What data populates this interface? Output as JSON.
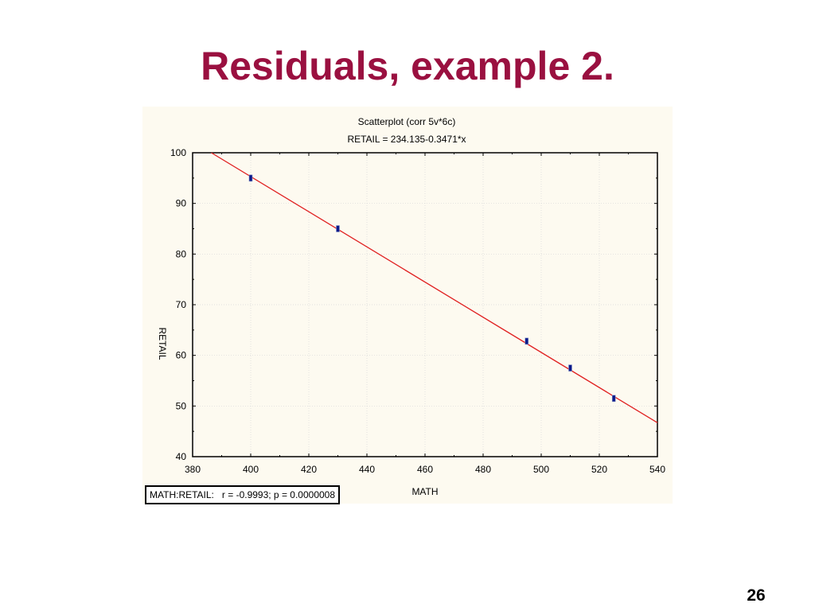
{
  "slide": {
    "title": "Residuals, example 2.",
    "page_number": "26"
  },
  "chart_data": {
    "type": "scatter",
    "title": "Scatterplot (corr 5v*6c)",
    "subtitle": "RETAIL = 234.135-0.3471*x",
    "xlabel": "MATH",
    "ylabel": "RETAIL",
    "xlim": [
      380,
      540
    ],
    "ylim": [
      40,
      100
    ],
    "x_ticks": [
      380,
      400,
      420,
      440,
      460,
      480,
      500,
      520,
      540
    ],
    "y_ticks": [
      40,
      50,
      60,
      70,
      80,
      90,
      100
    ],
    "grid": true,
    "points": [
      {
        "x": 400,
        "y": 95
      },
      {
        "x": 430,
        "y": 85
      },
      {
        "x": 495,
        "y": 62.8
      },
      {
        "x": 510,
        "y": 57.5
      },
      {
        "x": 525,
        "y": 51.5
      }
    ],
    "regression": {
      "intercept": 234.135,
      "slope": -0.3471
    },
    "stats_text": "MATH:RETAIL:   r = -0.9993; p = 0.0000008",
    "colors": {
      "line": "#e02020",
      "points": "#0a1a8a",
      "background": "#fdfaf0",
      "grid": "#d8d8d8"
    }
  }
}
